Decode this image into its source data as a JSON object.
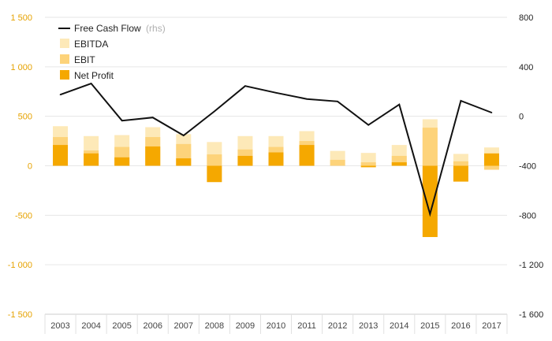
{
  "chart_data": {
    "type": "bar",
    "categories": [
      "2003",
      "2004",
      "2005",
      "2006",
      "2007",
      "2008",
      "2009",
      "2010",
      "2011",
      "2012",
      "2013",
      "2014",
      "2015",
      "2016",
      "2017"
    ],
    "series": [
      {
        "name": "EBITDA",
        "kind": "bar",
        "axis": "left",
        "color": "#fde9b8",
        "values": [
          400,
          300,
          310,
          390,
          320,
          240,
          300,
          300,
          350,
          150,
          130,
          210,
          470,
          120,
          185
        ]
      },
      {
        "name": "EBIT",
        "kind": "bar",
        "axis": "left",
        "color": "#fdd37a",
        "values": [
          290,
          155,
          190,
          290,
          220,
          115,
          165,
          190,
          250,
          60,
          35,
          100,
          385,
          45,
          -40
        ]
      },
      {
        "name": "Net Profit",
        "kind": "bar",
        "axis": "left",
        "color": "#f5a800",
        "values": [
          210,
          125,
          85,
          195,
          75,
          -165,
          100,
          135,
          210,
          0,
          -15,
          35,
          -720,
          -160,
          125
        ]
      },
      {
        "name": "Free Cash Flow",
        "kind": "line",
        "axis": "right",
        "color": "#111111",
        "values": [
          175,
          265,
          -35,
          -10,
          -155,
          40,
          245,
          190,
          140,
          120,
          -70,
          95,
          -790,
          125,
          30
        ]
      }
    ],
    "legend_note": "(rhs)",
    "ylim": [
      -1500,
      1500
    ],
    "yticks": [
      -1500,
      -1000,
      -500,
      0,
      500,
      1000,
      1500
    ],
    "ytick_labels": [
      "-1 500",
      "-1 000",
      "-500",
      "0",
      "500",
      "1 000",
      "1 500"
    ],
    "y2lim": [
      -1600,
      800
    ],
    "y2ticks": [
      -1600,
      -1200,
      -800,
      -400,
      0,
      400,
      800
    ],
    "y2tick_labels": [
      "-1 600",
      "-1 200",
      "-800",
      "-400",
      "0",
      "400",
      "800"
    ],
    "legend_position": "top-left",
    "grid": true,
    "title": "",
    "xlabel": "",
    "ylabel": ""
  }
}
